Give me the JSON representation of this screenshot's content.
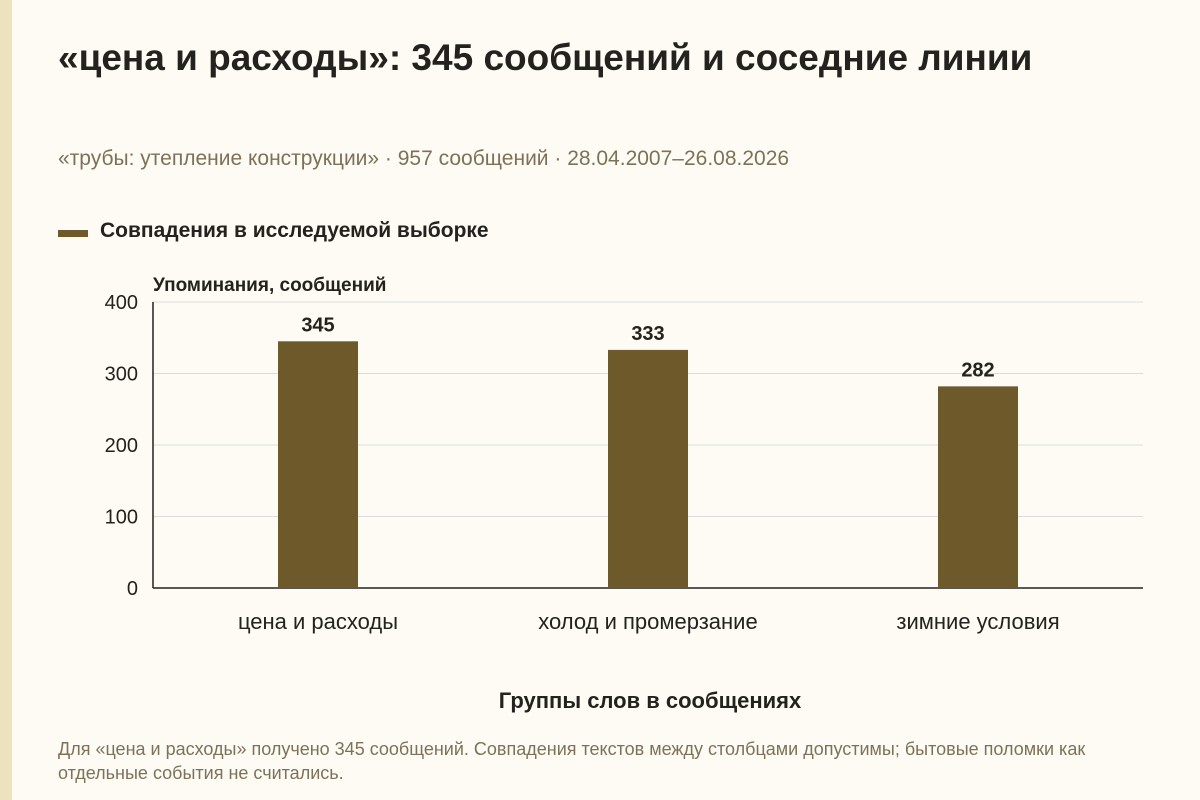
{
  "title": "«цена и расходы»: 345 сообщений и соседние линии",
  "subtitle": "«трубы: утепление конструкции» · 957 сообщений · 28.04.2007–26.08.2026",
  "legend": {
    "label": "Совпадения в исследуемой выборке"
  },
  "colors": {
    "bar": "#6d5929",
    "grid": "#dcdcdc",
    "axis": "#23221e",
    "accent": "#ece2bd"
  },
  "chart_data": {
    "type": "bar",
    "title": "",
    "xlabel": "Группы слов в сообщениях",
    "ylabel": "Упоминания, сообщений",
    "categories": [
      "цена и расходы",
      "холод и промерзание",
      "зимние условия"
    ],
    "series": [
      {
        "name": "Совпадения в исследуемой выборке",
        "values": [
          345,
          333,
          282
        ]
      }
    ],
    "ylim": [
      0,
      400
    ],
    "yticks": [
      0,
      100,
      200,
      300,
      400
    ],
    "grid": true,
    "legend_position": "top-left",
    "data_labels": true
  },
  "footnote": "Для «цена и расходы» получено 345 сообщений. Совпадения текстов между столбцами допустимы; бытовые поломки как отдельные события не считались."
}
